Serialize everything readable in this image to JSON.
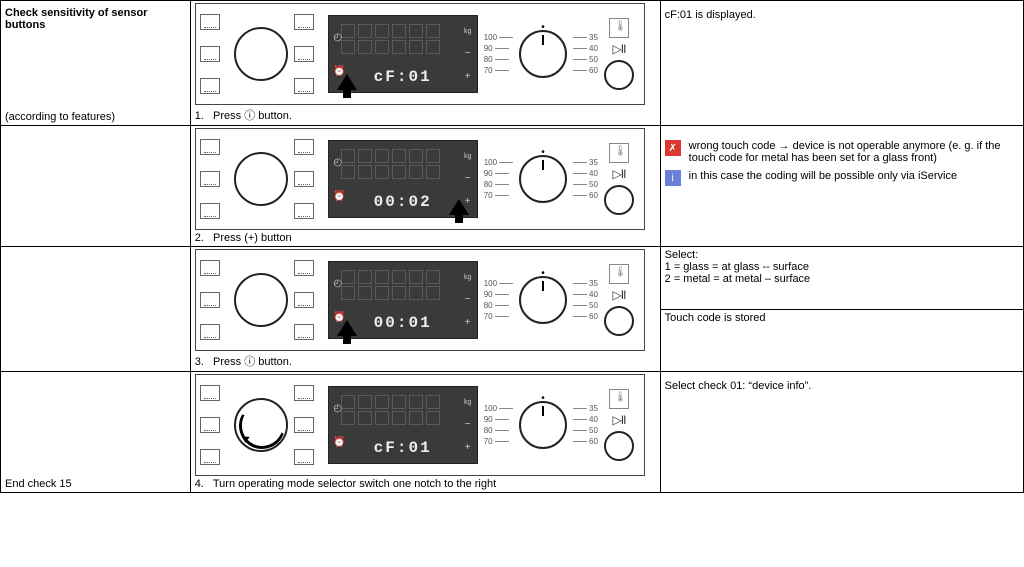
{
  "rows": [
    {
      "left_top": "Check sensitivity of sensor buttons",
      "left_bottom": "(according to features)",
      "step_num": "1.",
      "step_text": "Press ⓘ button.",
      "display": "cF:01",
      "arrow_on": "clock",
      "knob_rotate": false,
      "right_simple": "cF:01 is displayed."
    },
    {
      "left_top": "",
      "left_bottom": "",
      "step_num": "2.",
      "step_text": "Press (+) button",
      "display": "00:02",
      "arrow_on": "plus",
      "knob_rotate": false,
      "right_notes": [
        {
          "kind": "red",
          "text": "wrong touch code → device is not operable anymore (e. g. if the touch code for metal has been set for a glass front)"
        },
        {
          "kind": "blue",
          "text": "in this case the coding will be possible only via iService"
        }
      ]
    },
    {
      "left_top": "",
      "left_bottom": "",
      "step_num": "3.",
      "step_text": "Press ⓘ button.",
      "display": "00:01",
      "arrow_on": "clock",
      "knob_rotate": false,
      "right_lines": [
        "Select:",
        "1 = glass = at glass -- surface",
        "2 = metal = at metal – surface",
        "",
        "Touch code is stored"
      ]
    },
    {
      "left_top": "",
      "left_bottom": "End check 15",
      "step_num": "4.",
      "step_text": "Turn operating mode selector switch one notch to the right",
      "display": "cF:01",
      "arrow_on": "none",
      "knob_rotate": true,
      "right_simple": "Select check 01: “device info”."
    }
  ],
  "scale_left": [
    "100",
    "90",
    "80",
    "70"
  ],
  "scale_right": [
    "35",
    "40",
    "50",
    "60"
  ],
  "clock_glyph": "ⓘ"
}
